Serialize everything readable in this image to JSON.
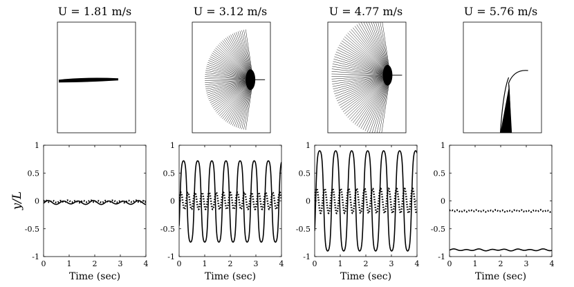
{
  "chart_data": [
    {
      "type": "line",
      "title": "U = 1.81 m/s",
      "xlabel": "Time (sec)",
      "ylabel": "y/L",
      "xlim": [
        0,
        4
      ],
      "ylim": [
        -1,
        1
      ],
      "xticks": [
        "0",
        "1",
        "2",
        "3",
        "4"
      ],
      "yticks": [
        "1",
        "0.5",
        "0",
        "-0.5",
        "-1"
      ],
      "grid": false,
      "series": [
        {
          "style": "solid",
          "mean": -0.03,
          "amplitude": 0.03,
          "frequency_hz": 1.7
        },
        {
          "style": "dotted",
          "mean": -0.01,
          "amplitude": 0.015,
          "frequency_hz": 3.4
        }
      ],
      "snapshot": "narrow horizontal flag, nearly static"
    },
    {
      "type": "line",
      "title": "U = 3.12 m/s",
      "xlabel": "Time (sec)",
      "ylabel": "",
      "xlim": [
        0,
        4
      ],
      "ylim": [
        -1,
        1
      ],
      "xticks": [
        "0",
        "1",
        "2",
        "3",
        "4"
      ],
      "yticks": [
        "1",
        "0.5",
        "0",
        "-0.5",
        "-1"
      ],
      "grid": false,
      "series": [
        {
          "style": "solid",
          "mean": -0.01,
          "amplitude": 0.73,
          "frequency_hz": 1.81
        },
        {
          "style": "dotted",
          "mean": 0.0,
          "amplitude": 0.15,
          "frequency_hz": 3.62
        }
      ],
      "snapshot": "fan-shaped flapping envelope"
    },
    {
      "type": "line",
      "title": "U = 4.77 m/s",
      "xlabel": "Time (sec)",
      "ylabel": "",
      "xlim": [
        0,
        4
      ],
      "ylim": [
        -1,
        1
      ],
      "xticks": [
        "0",
        "1",
        "2",
        "3",
        "4"
      ],
      "yticks": [
        "1",
        "0.5",
        "0",
        "-0.5",
        "-1"
      ],
      "grid": false,
      "series": [
        {
          "style": "solid",
          "mean": 0.0,
          "amplitude": 0.9,
          "frequency_hz": 1.6
        },
        {
          "style": "dotted",
          "mean": 0.0,
          "amplitude": 0.22,
          "frequency_hz": 3.2
        }
      ],
      "snapshot": "wide fan-shaped flapping envelope"
    },
    {
      "type": "line",
      "title": "U = 5.76 m/s",
      "xlabel": "Time (sec)",
      "ylabel": "",
      "xlim": [
        0,
        4
      ],
      "ylim": [
        -1,
        1
      ],
      "xticks": [
        "0",
        "1",
        "2",
        "3",
        "4"
      ],
      "yticks": [
        "1",
        "0.5",
        "0",
        "-0.5",
        "-1"
      ],
      "grid": false,
      "series": [
        {
          "style": "solid",
          "mean": -0.88,
          "amplitude": 0.012,
          "frequency_hz": 2.0
        },
        {
          "style": "dotted",
          "mean": -0.18,
          "amplitude": 0.012,
          "frequency_hz": 4.0
        }
      ],
      "snapshot": "deflected flag, bent downward"
    }
  ]
}
